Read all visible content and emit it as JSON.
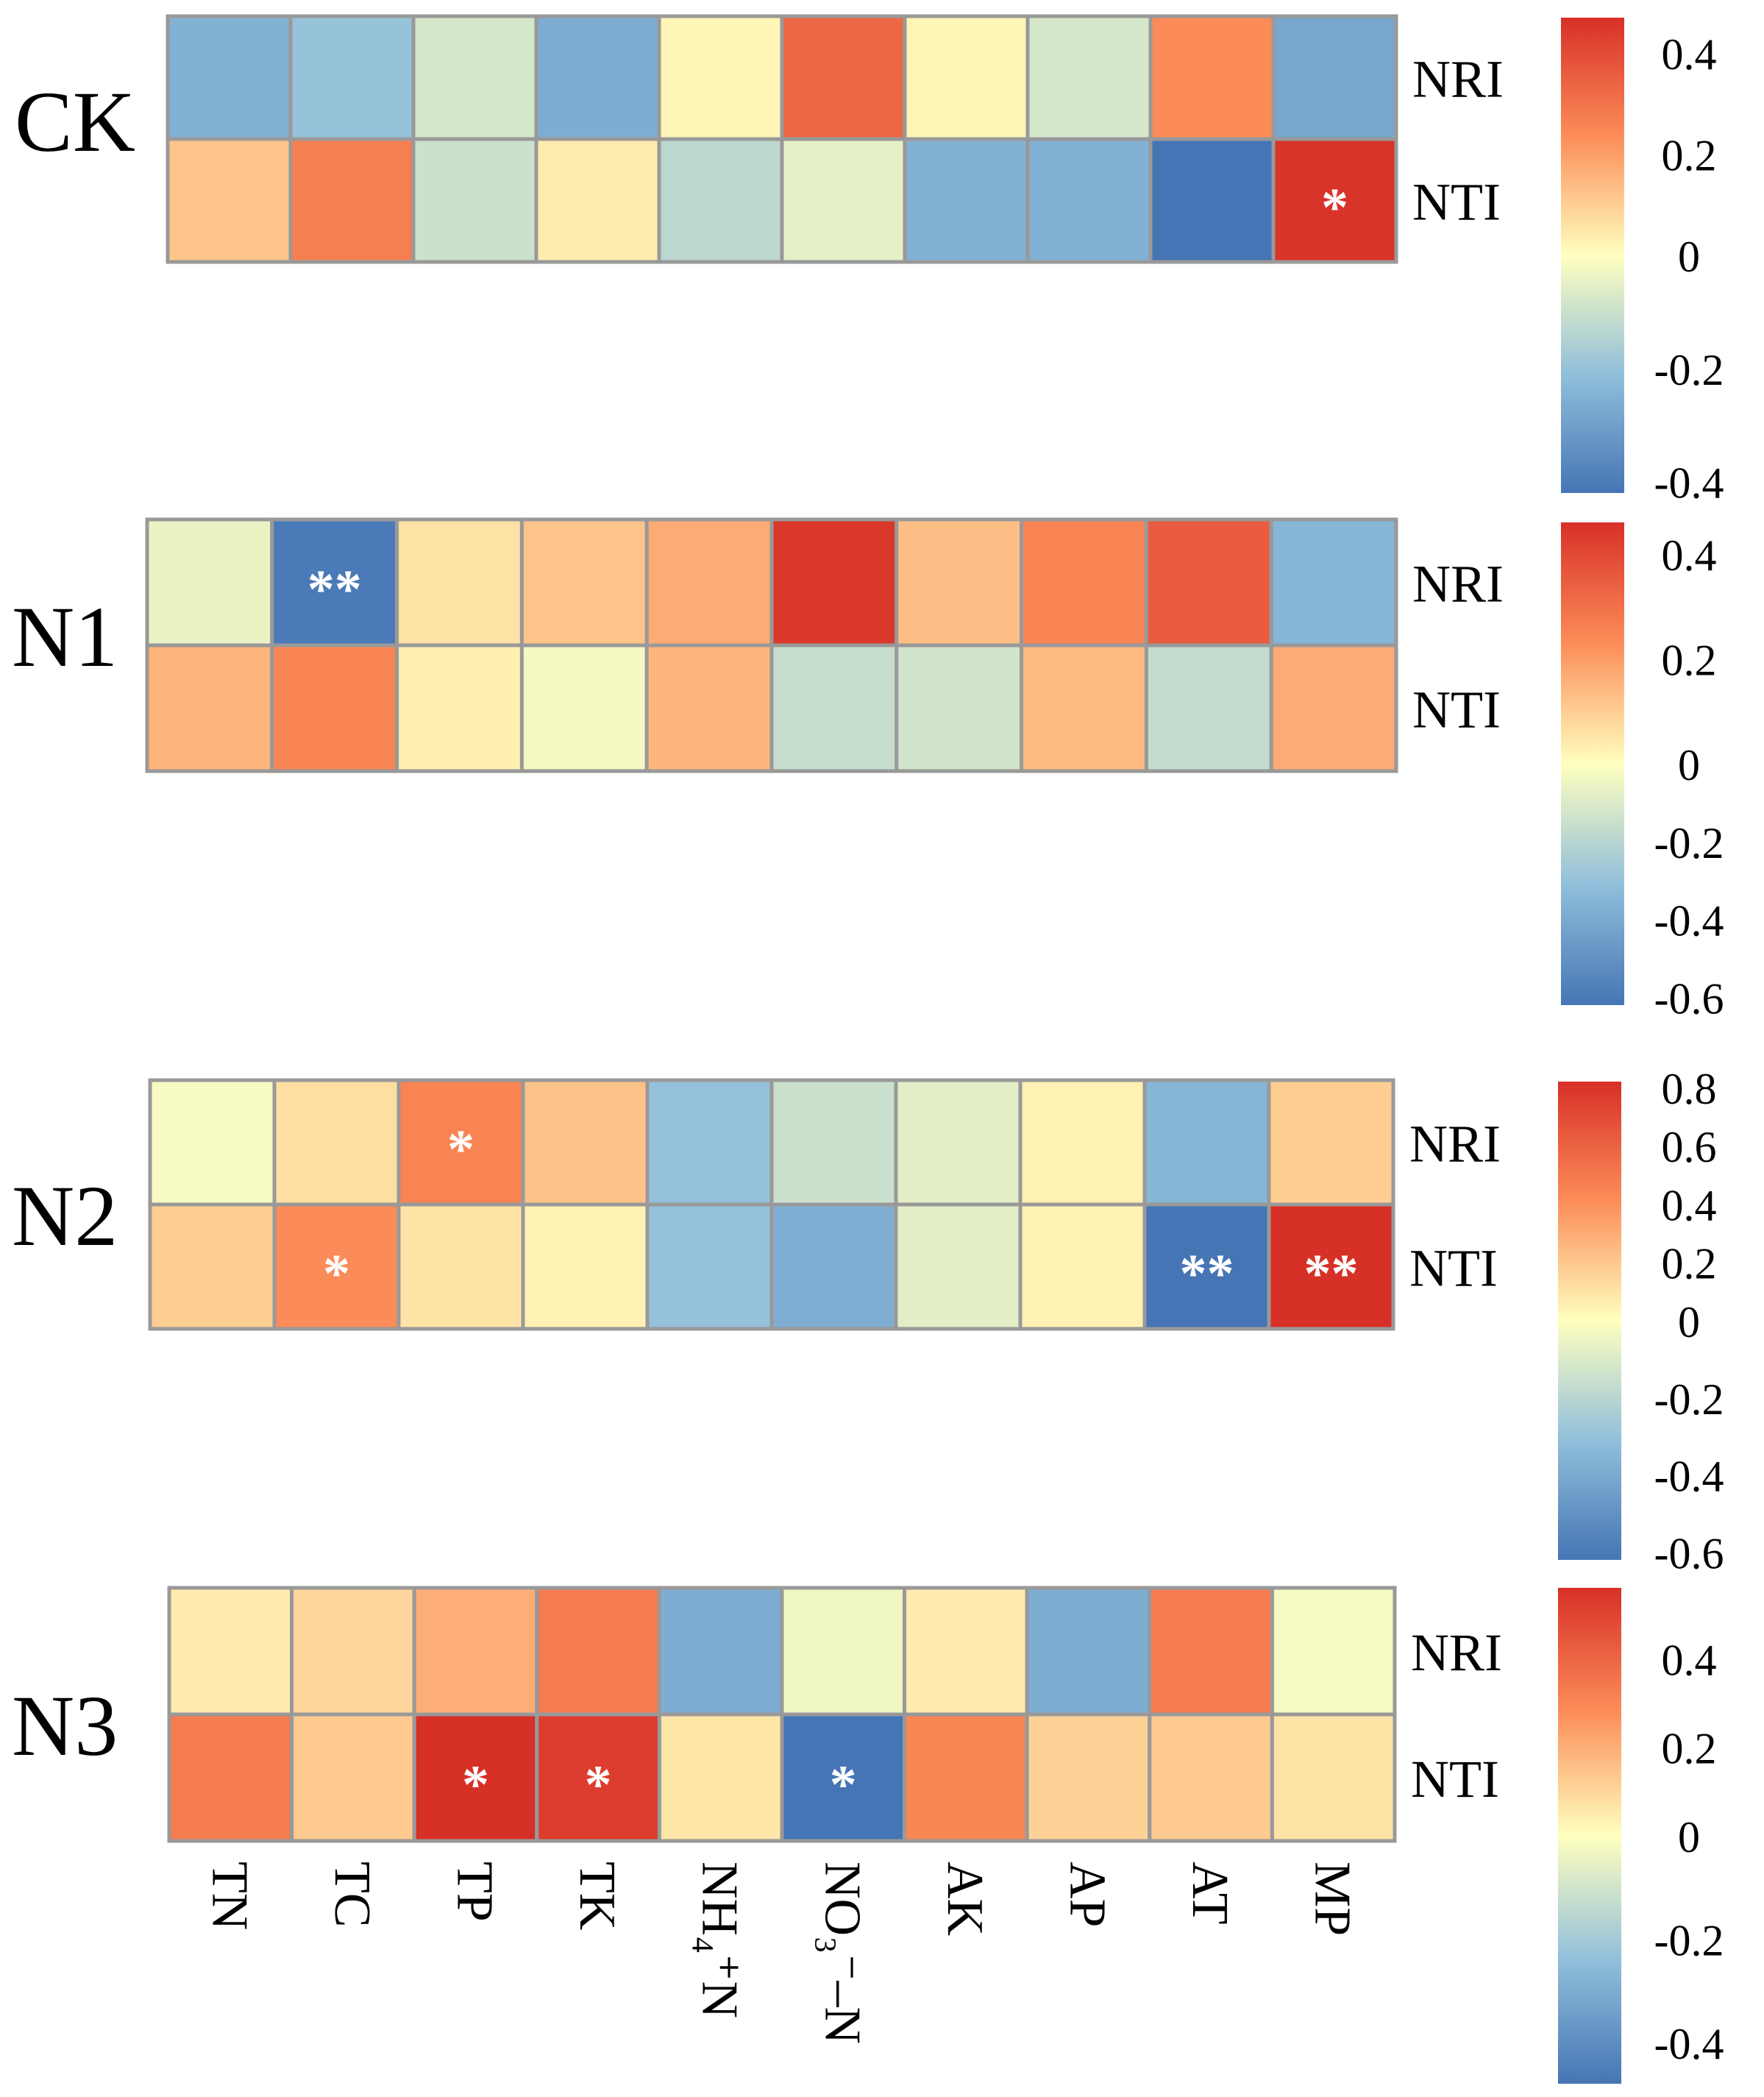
{
  "columns": [
    "TN",
    "TC",
    "TP",
    "TK",
    "NH₄⁺N",
    "NO₃⁻–N",
    "AK",
    "AP",
    "AT",
    "MP"
  ],
  "rows": [
    "NRI",
    "NTI"
  ],
  "colors": {
    "low": "#4575b4",
    "mid": "#ffffbf",
    "high": "#d73027",
    "grid": "#999999"
  },
  "chart_data": [
    {
      "type": "heatmap",
      "panel": "CK",
      "rows": [
        "NRI",
        "NTI"
      ],
      "columns": [
        "TN",
        "TC",
        "TP",
        "TK",
        "NH₄⁺N",
        "NO₃⁻–N",
        "AK",
        "AP",
        "AT",
        "MP"
      ],
      "values": [
        [
          -0.25,
          -0.2,
          -0.08,
          -0.26,
          0.02,
          0.33,
          0.02,
          -0.08,
          0.24,
          -0.28
        ],
        [
          0.12,
          0.27,
          -0.1,
          0.04,
          -0.13,
          -0.05,
          -0.25,
          -0.25,
          -0.42,
          0.46
        ]
      ],
      "significance": [
        [
          "",
          "",
          "",
          "",
          "",
          "",
          "",
          "",
          "",
          ""
        ],
        [
          "",
          "",
          "",
          "",
          "",
          "",
          "",
          "",
          "",
          "*"
        ]
      ],
      "colorbar": {
        "min": -0.42,
        "max": 0.47,
        "ticks": [
          0.4,
          0.2,
          0,
          -0.2,
          -0.4
        ]
      }
    },
    {
      "type": "heatmap",
      "panel": "N1",
      "rows": [
        "NRI",
        "NTI"
      ],
      "columns": [
        "TN",
        "TC",
        "TP",
        "TK",
        "NH₄⁺N",
        "NO₃⁻–N",
        "AK",
        "AP",
        "AT",
        "MP"
      ],
      "values": [
        [
          -0.06,
          -0.6,
          0.06,
          0.12,
          0.17,
          0.44,
          0.13,
          0.25,
          0.35,
          -0.35
        ],
        [
          0.15,
          0.25,
          0.03,
          -0.03,
          0.15,
          -0.16,
          -0.13,
          0.14,
          -0.17,
          0.17
        ]
      ],
      "significance": [
        [
          "",
          "**",
          "",
          "",
          "",
          "",
          "",
          "",
          "",
          ""
        ],
        [
          "",
          "",
          "",
          "",
          "",
          "",
          "",
          "",
          "",
          ""
        ]
      ],
      "colorbar": {
        "min": -0.62,
        "max": 0.46,
        "ticks": [
          0.4,
          0.2,
          0,
          -0.2,
          -0.4,
          -0.6
        ]
      }
    },
    {
      "type": "heatmap",
      "panel": "N2",
      "rows": [
        "NRI",
        "NTI"
      ],
      "columns": [
        "TN",
        "TC",
        "TP",
        "TK",
        "NH₄⁺N",
        "NO₃⁻–N",
        "AK",
        "AP",
        "AT",
        "MP"
      ],
      "values": [
        [
          -0.02,
          0.12,
          0.45,
          0.22,
          -0.3,
          -0.15,
          -0.08,
          0.05,
          -0.35,
          0.18
        ],
        [
          0.18,
          0.42,
          0.1,
          0.05,
          -0.3,
          -0.38,
          -0.08,
          0.05,
          -0.65,
          0.82
        ]
      ],
      "significance": [
        [
          "",
          "",
          "*",
          "",
          "",
          "",
          "",
          "",
          "",
          ""
        ],
        [
          "",
          "*",
          "",
          "",
          "",
          "",
          "",
          "",
          "**",
          "**"
        ]
      ],
      "colorbar": {
        "min": -0.62,
        "max": 0.82,
        "ticks": [
          0.8,
          0.6,
          0.4,
          0.2,
          0,
          -0.2,
          -0.4,
          -0.6
        ]
      }
    },
    {
      "type": "heatmap",
      "panel": "N3",
      "rows": [
        "NRI",
        "NTI"
      ],
      "columns": [
        "TN",
        "TC",
        "TP",
        "TK",
        "NH₄⁺N",
        "NO₃⁻–N",
        "AK",
        "AP",
        "AT",
        "MP"
      ],
      "values": [
        [
          0.05,
          0.1,
          0.2,
          0.33,
          -0.3,
          -0.03,
          0.05,
          -0.3,
          0.33,
          -0.02
        ],
        [
          0.33,
          0.13,
          0.56,
          0.52,
          0.06,
          -0.48,
          0.3,
          0.11,
          0.13,
          0.07
        ]
      ],
      "significance": [
        [
          "",
          "",
          "",
          "",
          "",
          "",
          "",
          "",
          "",
          ""
        ],
        [
          "",
          "",
          "*",
          "*",
          "",
          "*",
          "",
          "",
          "",
          ""
        ]
      ],
      "colorbar": {
        "min": -0.48,
        "max": 0.56,
        "ticks": [
          0.4,
          0.2,
          0,
          -0.2,
          -0.4
        ]
      }
    }
  ]
}
